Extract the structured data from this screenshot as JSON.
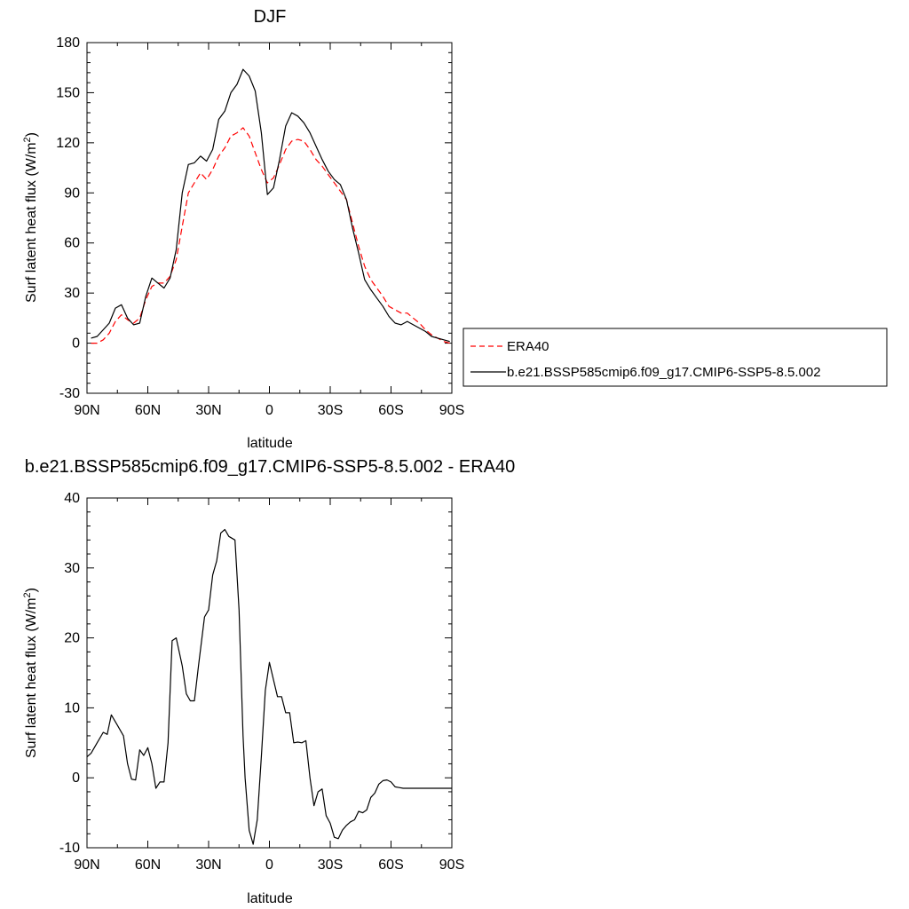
{
  "chart_data": [
    {
      "type": "line",
      "title": "DJF",
      "xlabel": "latitude",
      "ylabel": "Surf latent heat flux (W/m",
      "ylabel_sup": "2",
      "ylabel_close": ")",
      "xlim": [
        90,
        -90
      ],
      "ylim": [
        -30,
        180
      ],
      "x_ticks": [
        {
          "value": 90,
          "label": "90N"
        },
        {
          "value": 60,
          "label": "60N"
        },
        {
          "value": 30,
          "label": "30N"
        },
        {
          "value": 0,
          "label": "0"
        },
        {
          "value": -30,
          "label": "30S"
        },
        {
          "value": -60,
          "label": "60S"
        },
        {
          "value": -90,
          "label": "90S"
        }
      ],
      "y_ticks": [
        -30,
        0,
        30,
        60,
        90,
        120,
        150,
        180
      ],
      "grid": false,
      "legend_position": "right",
      "series": [
        {
          "name": "ERA40",
          "color": "#ff0000",
          "dash": "dashed",
          "x": [
            88,
            85,
            82,
            79,
            76,
            73,
            70,
            67,
            64,
            61,
            58,
            55,
            52,
            49,
            46,
            43,
            40,
            37,
            34,
            31,
            28,
            25,
            22,
            19,
            16,
            13,
            10,
            7,
            4,
            1,
            -2,
            -5,
            -8,
            -11,
            -14,
            -17,
            -20,
            -23,
            -26,
            -29,
            -32,
            -35,
            -38,
            -41,
            -44,
            -47,
            -50,
            -53,
            -56,
            -59,
            -62,
            -65,
            -68,
            -71,
            -74,
            -77,
            -80,
            -83,
            -86,
            -89
          ],
          "y": [
            0,
            0,
            2,
            6,
            13,
            17,
            14,
            12,
            15,
            26,
            34,
            36,
            36,
            40,
            50,
            70,
            90,
            96,
            102,
            98,
            104,
            112,
            117,
            124,
            126,
            129,
            124,
            114,
            104,
            96,
            99,
            107,
            116,
            121,
            122,
            121,
            116,
            110,
            106,
            101,
            96,
            91,
            86,
            72,
            58,
            46,
            38,
            33,
            28,
            22,
            20,
            18,
            18,
            15,
            12,
            8,
            5,
            3,
            1,
            0
          ]
        },
        {
          "name": "b.e21.BSSP585cmip6.f09_g17.CMIP6-SSP5-8.5.002",
          "color": "#000000",
          "dash": "solid",
          "x": [
            88,
            85,
            82,
            79,
            76,
            73,
            70,
            67,
            64,
            61,
            58,
            55,
            52,
            49,
            46,
            43,
            40,
            37,
            34,
            31,
            28,
            25,
            22,
            19,
            16,
            13,
            10,
            7,
            4,
            1,
            -2,
            -5,
            -8,
            -11,
            -14,
            -17,
            -20,
            -23,
            -26,
            -29,
            -32,
            -35,
            -38,
            -41,
            -44,
            -47,
            -50,
            -53,
            -56,
            -59,
            -62,
            -65,
            -68,
            -71,
            -74,
            -77,
            -80,
            -83,
            -86,
            -89
          ],
          "y": [
            3,
            4,
            8,
            12,
            21,
            23,
            15,
            11,
            12,
            28,
            39,
            36,
            33,
            39,
            56,
            90,
            107,
            108,
            112,
            109,
            116,
            134,
            139,
            150,
            155,
            164,
            160,
            151,
            126,
            89,
            93,
            110,
            130,
            138,
            136,
            132,
            126,
            118,
            110,
            103,
            98,
            95,
            86,
            69,
            54,
            38,
            32,
            27,
            22,
            16,
            12,
            11,
            13,
            11,
            9,
            7,
            4,
            3,
            2,
            1
          ]
        }
      ]
    },
    {
      "type": "line",
      "title": "b.e21.BSSP585cmip6.f09_g17.CMIP6-SSP5-8.5.002 - ERA40",
      "xlabel": "latitude",
      "ylabel": "Surf latent heat flux (W/m",
      "ylabel_sup": "2",
      "ylabel_close": ")",
      "xlim": [
        90,
        -90
      ],
      "ylim": [
        -10,
        40
      ],
      "x_ticks": [
        {
          "value": 90,
          "label": "90N"
        },
        {
          "value": 60,
          "label": "60N"
        },
        {
          "value": 30,
          "label": "30N"
        },
        {
          "value": 0,
          "label": "0"
        },
        {
          "value": -30,
          "label": "30S"
        },
        {
          "value": -60,
          "label": "60S"
        },
        {
          "value": -90,
          "label": "90S"
        }
      ],
      "y_ticks": [
        -10,
        0,
        10,
        20,
        30,
        40
      ],
      "grid": false,
      "series": [
        {
          "color": "#000000",
          "dash": "solid",
          "x": [
            90,
            88,
            85,
            82,
            80,
            78,
            75,
            72,
            70,
            68,
            66,
            64,
            62,
            60,
            58,
            56,
            54,
            52,
            50,
            48,
            46,
            43,
            41,
            39,
            37,
            35,
            32,
            30,
            28,
            26,
            24,
            22,
            20,
            17,
            15,
            13,
            12,
            10,
            8,
            6,
            4,
            2,
            0,
            -2,
            -4,
            -6,
            -8,
            -10,
            -12,
            -14,
            -16,
            -18,
            -20,
            -22,
            -24,
            -26,
            -28,
            -30,
            -32,
            -34,
            -36,
            -38,
            -40,
            -42,
            -44,
            -46,
            -48,
            -50,
            -52,
            -54,
            -56,
            -58,
            -60,
            -62,
            -64,
            -66,
            -68,
            -70,
            -72,
            -74,
            -76,
            -78,
            -80,
            -82,
            -84,
            -86,
            -88,
            -90
          ],
          "y": [
            3,
            3.5,
            5,
            6.5,
            6.2,
            9,
            7.5,
            6,
            2,
            -0.2,
            -0.3,
            4,
            3.2,
            4.3,
            2,
            -1.5,
            -0.6,
            -0.6,
            5,
            19.6,
            20,
            16,
            12,
            11,
            11,
            16,
            23,
            24,
            29,
            31,
            35,
            35.5,
            34.5,
            34,
            24,
            6,
            0,
            -7.5,
            -9.5,
            -6,
            3,
            12.5,
            16.5,
            14,
            11.6,
            11.6,
            9.3,
            9.3,
            5,
            5.1,
            5,
            5.3,
            0,
            -4,
            -2,
            -1.6,
            -5.4,
            -6.5,
            -8.5,
            -8.7,
            -7.5,
            -6.8,
            -6.3,
            -6,
            -4.8,
            -5,
            -4.6,
            -2.8,
            -2.2,
            -0.9,
            -0.4,
            -0.3,
            -0.6,
            -1.3,
            -1.4,
            -1.5,
            -1.5,
            -1.5,
            -1.5,
            -1.5,
            -1.5,
            -1.5,
            -1.5,
            -1.5,
            -1.5,
            -1.5,
            -1.5,
            -1.5
          ]
        }
      ]
    }
  ]
}
